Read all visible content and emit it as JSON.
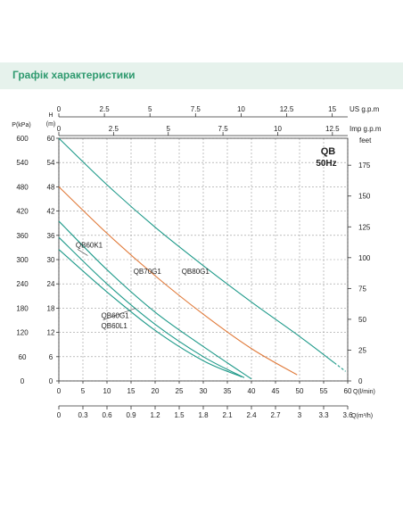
{
  "header": {
    "title": "Графік характеристики"
  },
  "chart_data": {
    "type": "line",
    "title": "QB",
    "subtitle": "50Hz",
    "grid": true,
    "axes": {
      "left_pressure": {
        "label": "P(kPa)",
        "range": [
          0,
          600
        ],
        "ticks": [
          0,
          60,
          120,
          180,
          240,
          300,
          360,
          420,
          480,
          540,
          600
        ]
      },
      "left_head": {
        "label_top": "H",
        "label_bottom": "(m)",
        "range": [
          0,
          60
        ],
        "ticks": [
          0,
          6,
          12,
          18,
          24,
          30,
          36,
          42,
          48,
          54,
          60
        ]
      },
      "right_feet": {
        "label": "feet",
        "range": [
          0,
          196.85
        ],
        "ticks": [
          0,
          25,
          50,
          75,
          100,
          125,
          150,
          175
        ]
      },
      "bottom_lmin": {
        "label": "Q(l/min)",
        "range": [
          0,
          60
        ],
        "ticks": [
          0,
          5,
          10,
          15,
          20,
          25,
          30,
          35,
          40,
          45,
          50,
          55,
          60
        ]
      },
      "bottom_m3h": {
        "label": "Q(m³/h)",
        "range": [
          0,
          3.6
        ],
        "ticks": [
          "0",
          "0.3",
          "0.6",
          "0.9",
          "1.2",
          "1.5",
          "1.8",
          "2.1",
          "2.4",
          "2.7",
          "3",
          "3.3",
          "3.6"
        ]
      },
      "top_us": {
        "label": "US g.p.m",
        "range": [
          0,
          15.85
        ],
        "ticks": [
          "0",
          "2.5",
          "5",
          "7.5",
          "10",
          "12.5",
          "15"
        ]
      },
      "top_imp": {
        "label": "Imp g.p.m",
        "range": [
          0,
          13.2
        ],
        "ticks": [
          "0",
          "2.5",
          "5",
          "7.5",
          "10",
          "12.5"
        ]
      }
    },
    "series": [
      {
        "name": "QB80G1",
        "color": "#1f9a8a",
        "dashed_tail": true,
        "x": [
          0,
          10,
          20,
          30,
          40,
          50,
          57.2
        ],
        "y": [
          60,
          48.5,
          38,
          28.5,
          19.5,
          11,
          4.5
        ]
      },
      {
        "name": "QB70G1",
        "color": "#e07a3a",
        "x": [
          0,
          10,
          20,
          30,
          40,
          49.5
        ],
        "y": [
          48,
          36.5,
          26,
          16.5,
          8,
          1.5
        ]
      },
      {
        "name": "QB60K1",
        "color": "#1f9a8a",
        "x": [
          0,
          10,
          20,
          30,
          40
        ],
        "y": [
          39.5,
          27.5,
          17,
          8.5,
          0.5
        ]
      },
      {
        "name": "QB60G1",
        "color": "#1f9a8a",
        "x": [
          0,
          10,
          20,
          30,
          38.5
        ],
        "y": [
          35.5,
          24,
          14,
          6,
          0.8
        ]
      },
      {
        "name": "QB60L1",
        "color": "#1f9a8a",
        "x": [
          0,
          10,
          20,
          30,
          38
        ],
        "y": [
          32.5,
          22,
          12.5,
          5,
          1
        ]
      }
    ],
    "annotations": [
      {
        "text": "QB60K1",
        "x": 3.5,
        "y": 33,
        "leader_to": [
          6,
          31
        ]
      },
      {
        "text": "QB70G1",
        "x": 15.5,
        "y": 26.5
      },
      {
        "text": "QB80G1",
        "x": 25.5,
        "y": 26.5
      },
      {
        "text": "QB60G1",
        "x": 8.8,
        "y": 15.5,
        "leader_to": [
          16,
          18
        ]
      },
      {
        "text": "QB60L1",
        "x": 8.8,
        "y": 13
      }
    ]
  }
}
